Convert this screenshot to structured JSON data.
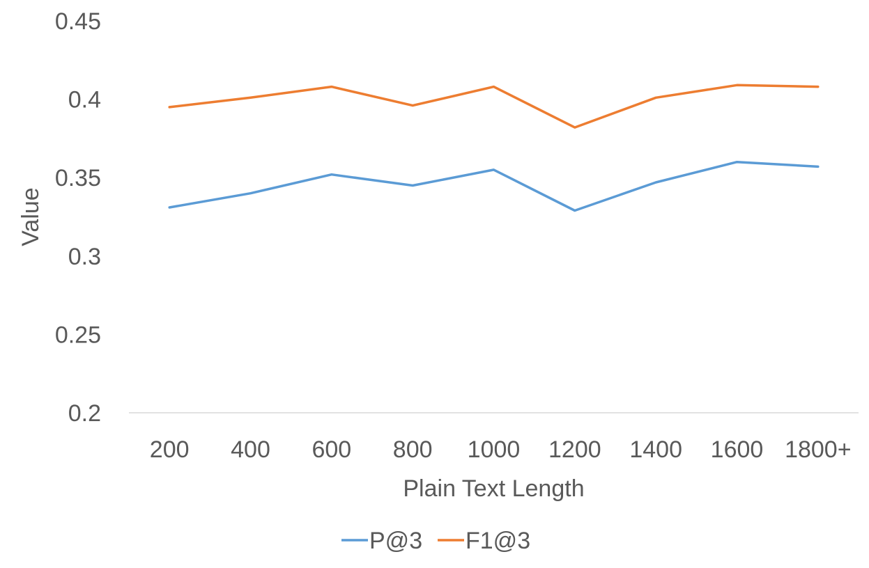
{
  "chart_data": {
    "type": "line",
    "title": "",
    "xlabel": "Plain Text Length",
    "ylabel": "Value",
    "categories": [
      "200",
      "400",
      "600",
      "800",
      "1000",
      "1200",
      "1400",
      "1600",
      "1800+"
    ],
    "series": [
      {
        "name": "P@3",
        "color": "#5B9BD5",
        "values": [
          0.331,
          0.34,
          0.352,
          0.345,
          0.355,
          0.329,
          0.347,
          0.36,
          0.357
        ]
      },
      {
        "name": "F1@3",
        "color": "#ED7D31",
        "values": [
          0.395,
          0.401,
          0.408,
          0.396,
          0.408,
          0.382,
          0.401,
          0.409,
          0.408
        ]
      }
    ],
    "ylim": [
      0.2,
      0.45
    ],
    "yticks": [
      "0.2",
      "0.25",
      "0.3",
      "0.35",
      "0.4",
      "0.45"
    ],
    "grid": false,
    "legend_position": "bottom"
  }
}
